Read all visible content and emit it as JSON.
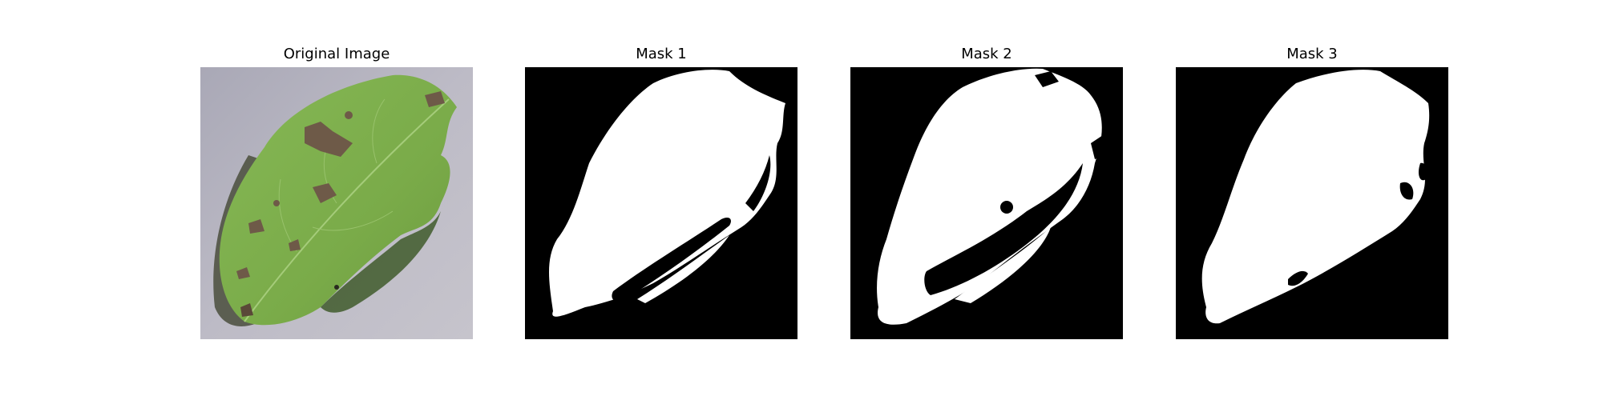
{
  "panels": [
    {
      "title": "Original Image"
    },
    {
      "title": "Mask 1"
    },
    {
      "title": "Mask 2"
    },
    {
      "title": "Mask 3"
    }
  ],
  "colors": {
    "background": "#ffffff",
    "mask_foreground": "#ffffff",
    "mask_background": "#000000",
    "leaf_green": "#7fb24a",
    "leaf_shadow": "#3a4a2a",
    "surface_gray": "#b7b5be",
    "lesion_brown": "#6e5a48"
  }
}
